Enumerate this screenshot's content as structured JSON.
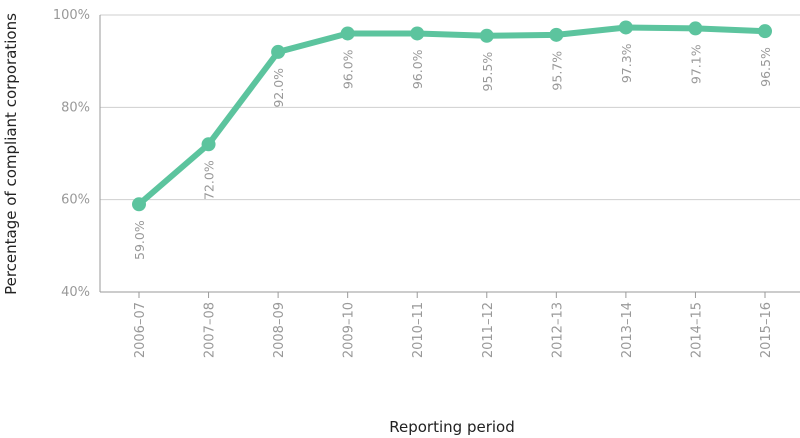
{
  "chart_data": {
    "type": "line",
    "xlabel": "Reporting period",
    "ylabel": "Percentage of compliant corporations",
    "categories": [
      "2006–07",
      "2007–08",
      "2008–09",
      "2009–10",
      "2010–11",
      "2011–12",
      "2012–13",
      "2013–14",
      "2014–15",
      "2015–16"
    ],
    "values": [
      59.0,
      72.0,
      92.0,
      96.0,
      96.0,
      95.5,
      95.7,
      97.3,
      97.1,
      96.5
    ],
    "data_labels": [
      "59.0%",
      "72.0%",
      "92.0%",
      "96.0%",
      "96.0%",
      "95.5%",
      "95.7%",
      "97.3%",
      "97.1%",
      "96.5%"
    ],
    "ylim": [
      40,
      100
    ],
    "y_ticks": [
      40,
      60,
      80,
      100
    ],
    "y_tick_labels": [
      "40%",
      "60%",
      "80%",
      "100%"
    ],
    "grid": true,
    "legend": "none",
    "colors": {
      "line": "#5cc49e",
      "grid": "#cfcfcf",
      "axis": "#9a9a9a",
      "tick_text": "#999999"
    }
  }
}
